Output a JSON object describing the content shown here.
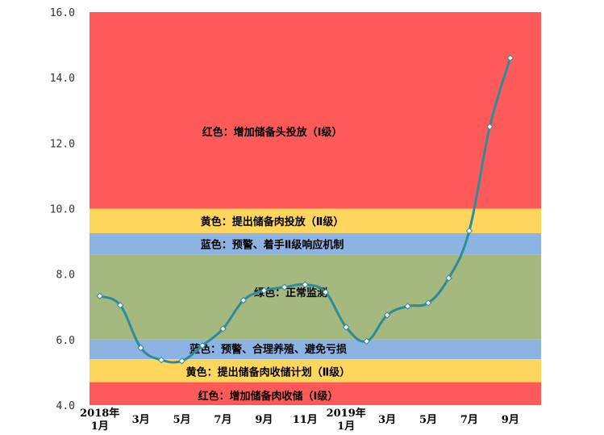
{
  "chart_data": {
    "type": "line",
    "title": "",
    "xlabel": "",
    "ylabel": "",
    "ylim": [
      4.0,
      16.0
    ],
    "y_ticks": [
      "4.0",
      "6.0",
      "8.0",
      "10.0",
      "12.0",
      "14.0",
      "16.0"
    ],
    "x_tick_labels": [
      {
        "index": 0,
        "lines": [
          "2018年",
          "1月"
        ]
      },
      {
        "index": 2,
        "lines": [
          "3月"
        ]
      },
      {
        "index": 4,
        "lines": [
          "5月"
        ]
      },
      {
        "index": 6,
        "lines": [
          "7月"
        ]
      },
      {
        "index": 8,
        "lines": [
          "9月"
        ]
      },
      {
        "index": 10,
        "lines": [
          "11月"
        ]
      },
      {
        "index": 12,
        "lines": [
          "2019年",
          "1月"
        ]
      },
      {
        "index": 14,
        "lines": [
          "3月"
        ]
      },
      {
        "index": 16,
        "lines": [
          "5月"
        ]
      },
      {
        "index": 18,
        "lines": [
          "7月"
        ]
      },
      {
        "index": 20,
        "lines": [
          "9月"
        ]
      }
    ],
    "x_count": 22,
    "series": [
      {
        "values": [
          7.33,
          7.05,
          5.75,
          5.38,
          5.35,
          5.82,
          6.33,
          7.2,
          7.5,
          7.6,
          7.68,
          7.45,
          6.38,
          5.95,
          6.75,
          7.02,
          7.12,
          7.88,
          9.32,
          12.5,
          14.6
        ],
        "color": "#2e8b9a"
      }
    ],
    "bands": [
      {
        "from": 10.0,
        "to": 16.0,
        "color": "#ff5a5a",
        "label": "红色：增加储备头投放（Ⅰ级）",
        "label_y": 12.35,
        "label_index": 8.4
      },
      {
        "from": 9.25,
        "to": 10.0,
        "color": "#fed55d",
        "label": "黄色：提出储备肉投放（Ⅱ级）",
        "label_y": 9.62,
        "label_index": 8.4
      },
      {
        "from": 8.6,
        "to": 9.25,
        "color": "#8db3e2",
        "label": "蓝色：预警、着手Ⅱ级响应机制",
        "label_y": 8.92,
        "label_index": 8.4
      },
      {
        "from": 6.0,
        "to": 8.6,
        "color": "#a5b87f",
        "label": "绿色：正常监测",
        "label_y": 7.45,
        "label_index": 9.3
      },
      {
        "from": 5.4,
        "to": 6.0,
        "color": "#8db3e2",
        "label": "蓝色：预警、合理养殖、避免亏损",
        "label_y": 5.72,
        "label_index": 8.2
      },
      {
        "from": 4.7,
        "to": 5.4,
        "color": "#fed55d",
        "label": "黄色：提出储备肉收储计划（Ⅱ级）",
        "label_y": 5.02,
        "label_index": 8.2
      },
      {
        "from": 4.0,
        "to": 4.7,
        "color": "#ff5a5a",
        "label": "红色：增加储备肉收储（Ⅰ级）",
        "label_y": 4.3,
        "label_index": 8.2
      }
    ]
  }
}
